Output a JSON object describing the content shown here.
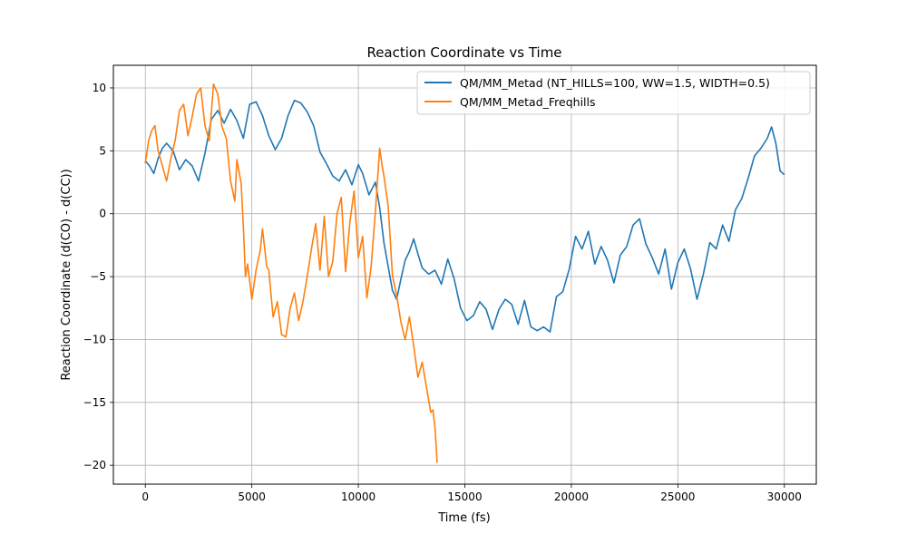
{
  "chart_data": {
    "type": "line",
    "title": "Reaction Coordinate vs Time",
    "xlabel": "Time (fs)",
    "ylabel": "Reaction Coordinate (d(CO) - d(CC))",
    "xlim": [
      -1500,
      31500
    ],
    "ylim": [
      -21.5,
      11.8
    ],
    "xticks": [
      0,
      5000,
      10000,
      15000,
      20000,
      25000,
      30000
    ],
    "xtick_labels": [
      "0",
      "5000",
      "10000",
      "15000",
      "20000",
      "25000",
      "30000"
    ],
    "yticks": [
      -20,
      -15,
      -10,
      -5,
      0,
      5,
      10
    ],
    "ytick_labels": [
      "−20",
      "−15",
      "−10",
      "−5",
      "0",
      "5",
      "10"
    ],
    "grid": true,
    "legend_position": "top-right",
    "series": [
      {
        "name": "QM/MM_Metad (NT_HILLS=100, WW=1.5, WIDTH=0.5)",
        "color": "#1f77b4",
        "x": [
          0,
          200,
          400,
          600,
          800,
          1000,
          1300,
          1600,
          1900,
          2200,
          2500,
          2800,
          3100,
          3400,
          3700,
          4000,
          4300,
          4600,
          4900,
          5200,
          5500,
          5800,
          6100,
          6400,
          6700,
          7000,
          7300,
          7600,
          7900,
          8200,
          8500,
          8800,
          9100,
          9400,
          9700,
          10000,
          10200,
          10500,
          10800,
          11000,
          11200,
          11400,
          11600,
          11800,
          12000,
          12200,
          12400,
          12600,
          12800,
          13000,
          13300,
          13600,
          13900,
          14200,
          14500,
          14800,
          15100,
          15400,
          15700,
          16000,
          16300,
          16600,
          16900,
          17200,
          17500,
          17800,
          18100,
          18400,
          18700,
          19000,
          19300,
          19600,
          19900,
          20200,
          20500,
          20800,
          21100,
          21400,
          21700,
          22000,
          22300,
          22600,
          22900,
          23200,
          23500,
          23800,
          24100,
          24400,
          24700,
          25000,
          25300,
          25600,
          25900,
          26200,
          26500,
          26800,
          27100,
          27400,
          27700,
          28000,
          28300,
          28600,
          28900,
          29200,
          29400,
          29600,
          29800,
          30000
        ],
        "y": [
          4.2,
          3.8,
          3.2,
          4.4,
          5.2,
          5.6,
          5.0,
          3.5,
          4.3,
          3.8,
          2.6,
          4.8,
          7.5,
          8.2,
          7.2,
          8.3,
          7.4,
          6.0,
          8.7,
          8.9,
          7.8,
          6.2,
          5.1,
          6.0,
          7.8,
          9.0,
          8.8,
          8.1,
          7.0,
          4.9,
          4.0,
          3.0,
          2.6,
          3.5,
          2.3,
          3.9,
          3.2,
          1.5,
          2.5,
          0.5,
          -2.3,
          -4.2,
          -6.1,
          -6.8,
          -5.2,
          -3.7,
          -3.0,
          -2.0,
          -3.2,
          -4.3,
          -4.8,
          -4.5,
          -5.6,
          -3.6,
          -5.2,
          -7.5,
          -8.5,
          -8.1,
          -7.0,
          -7.6,
          -9.2,
          -7.6,
          -6.8,
          -7.2,
          -8.8,
          -6.9,
          -9.0,
          -9.3,
          -9.0,
          -9.4,
          -6.6,
          -6.2,
          -4.4,
          -1.8,
          -2.8,
          -1.4,
          -4.0,
          -2.6,
          -3.7,
          -5.5,
          -3.3,
          -2.6,
          -0.9,
          -0.4,
          -2.4,
          -3.5,
          -4.8,
          -2.8,
          -6.0,
          -3.9,
          -2.8,
          -4.4,
          -6.8,
          -4.8,
          -2.3,
          -2.8,
          -0.9,
          -2.2,
          0.3,
          1.2,
          2.8,
          4.6,
          5.2,
          6.0,
          6.9,
          5.6,
          3.4,
          3.1
        ]
      },
      {
        "name": "QM/MM_Metad_Freqhills",
        "color": "#ff7f0e",
        "x": [
          0,
          150,
          300,
          450,
          600,
          800,
          1000,
          1200,
          1400,
          1600,
          1800,
          2000,
          2200,
          2400,
          2600,
          2800,
          3000,
          3200,
          3400,
          3600,
          3800,
          4000,
          4200,
          4300,
          4500,
          4600,
          4700,
          4800,
          5000,
          5200,
          5400,
          5500,
          5700,
          5800,
          6000,
          6200,
          6400,
          6600,
          6800,
          7000,
          7200,
          7400,
          7600,
          7800,
          8000,
          8200,
          8400,
          8600,
          8800,
          9000,
          9200,
          9400,
          9600,
          9800,
          10000,
          10200,
          10400,
          10600,
          10800,
          11000,
          11100,
          11200,
          11400,
          11600,
          11800,
          12000,
          12200,
          12400,
          12600,
          12800,
          13000,
          13200,
          13400,
          13500,
          13600,
          13700
        ],
        "y": [
          4.0,
          5.8,
          6.6,
          7.0,
          5.0,
          3.8,
          2.6,
          4.4,
          5.8,
          8.2,
          8.7,
          6.2,
          7.7,
          9.5,
          10.0,
          7.0,
          5.8,
          10.3,
          9.5,
          6.9,
          6.0,
          2.6,
          1.0,
          4.3,
          2.4,
          -1.0,
          -5.0,
          -4.0,
          -6.8,
          -4.5,
          -2.9,
          -1.2,
          -4.2,
          -4.5,
          -8.2,
          -7.0,
          -9.6,
          -9.8,
          -7.5,
          -6.3,
          -8.5,
          -7.0,
          -5.0,
          -2.8,
          -0.8,
          -4.5,
          -0.2,
          -5.0,
          -3.8,
          0.0,
          1.3,
          -4.6,
          -0.7,
          1.8,
          -3.5,
          -1.8,
          -6.7,
          -4.2,
          0.2,
          5.2,
          4.0,
          3.0,
          0.6,
          -4.9,
          -6.5,
          -8.6,
          -10.0,
          -8.2,
          -10.5,
          -13.0,
          -11.8,
          -13.8,
          -15.8,
          -15.6,
          -17.0,
          -19.8
        ]
      }
    ]
  }
}
